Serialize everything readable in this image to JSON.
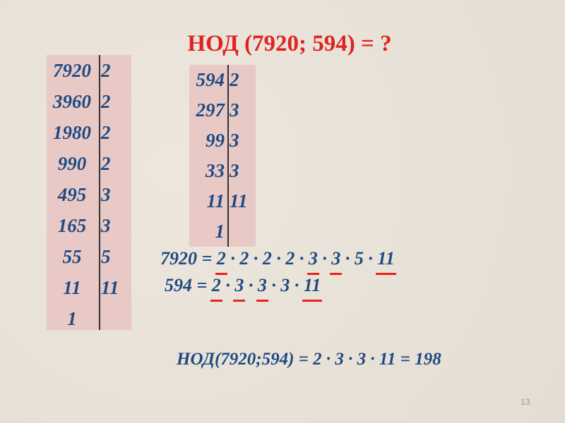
{
  "title": "НОД (7920; 594) = ?",
  "table_7920": [
    [
      "7920",
      "2"
    ],
    [
      "3960",
      "2"
    ],
    [
      "1980",
      "2"
    ],
    [
      "990",
      "2"
    ],
    [
      "495",
      "3"
    ],
    [
      "165",
      "3"
    ],
    [
      "55",
      "5"
    ],
    [
      "11",
      "11"
    ],
    [
      "1",
      ""
    ]
  ],
  "table_594": [
    [
      "594",
      "2"
    ],
    [
      "297",
      "3"
    ],
    [
      "99",
      "3"
    ],
    [
      "33",
      "3"
    ],
    [
      "11",
      "11"
    ],
    [
      "1",
      ""
    ]
  ],
  "eq1": {
    "lhs": "7920 =",
    "factors": [
      {
        "v": "2",
        "u": true
      },
      {
        "v": "2",
        "u": false
      },
      {
        "v": "2",
        "u": false
      },
      {
        "v": "2",
        "u": false
      },
      {
        "v": "3",
        "u": true
      },
      {
        "v": "3",
        "u": true
      },
      {
        "v": "5",
        "u": false
      },
      {
        "v": "11",
        "u": true
      }
    ]
  },
  "eq2": {
    "lhs": "594 =",
    "factors": [
      {
        "v": "2",
        "u": true
      },
      {
        "v": "3",
        "u": true
      },
      {
        "v": "3",
        "u": true
      },
      {
        "v": "3",
        "u": false
      },
      {
        "v": "11",
        "u": true
      }
    ]
  },
  "result": "НОД(7920;594) = 2 · 3 · 3 · 11 = 198",
  "page_number": "13",
  "colors": {
    "title": "#e0231f",
    "text": "#1e4a82",
    "underline": "#e8231f",
    "table_bg": "#e8c9c6"
  }
}
